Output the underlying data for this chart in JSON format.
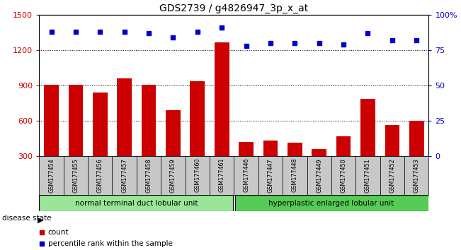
{
  "title": "GDS2739 / g4826947_3p_x_at",
  "samples": [
    "GSM177454",
    "GSM177455",
    "GSM177456",
    "GSM177457",
    "GSM177458",
    "GSM177459",
    "GSM177460",
    "GSM177461",
    "GSM177446",
    "GSM177447",
    "GSM177448",
    "GSM177449",
    "GSM177450",
    "GSM177451",
    "GSM177452",
    "GSM177453"
  ],
  "counts": [
    910,
    905,
    840,
    960,
    905,
    690,
    935,
    1265,
    420,
    435,
    415,
    360,
    470,
    790,
    565,
    600
  ],
  "percentiles": [
    88,
    88,
    88,
    88,
    87,
    84,
    88,
    91,
    78,
    80,
    80,
    80,
    79,
    87,
    82,
    82
  ],
  "group1_label": "normal terminal duct lobular unit",
  "group2_label": "hyperplastic enlarged lobular unit",
  "group1_count": 8,
  "group2_count": 8,
  "bar_color": "#cc0000",
  "dot_color": "#0000cc",
  "background_color": "#ffffff",
  "tick_label_bg": "#c8c8c8",
  "group1_bg": "#99e699",
  "group2_bg": "#55cc55",
  "y_left_ticks": [
    300,
    600,
    900,
    1200,
    1500
  ],
  "y_right_ticks": [
    0,
    25,
    50,
    75,
    100
  ],
  "ylim_left": [
    300,
    1500
  ],
  "ylim_right": [
    0,
    100
  ],
  "legend_count_label": "count",
  "legend_pct_label": "percentile rank within the sample",
  "disease_state_label": "disease state"
}
